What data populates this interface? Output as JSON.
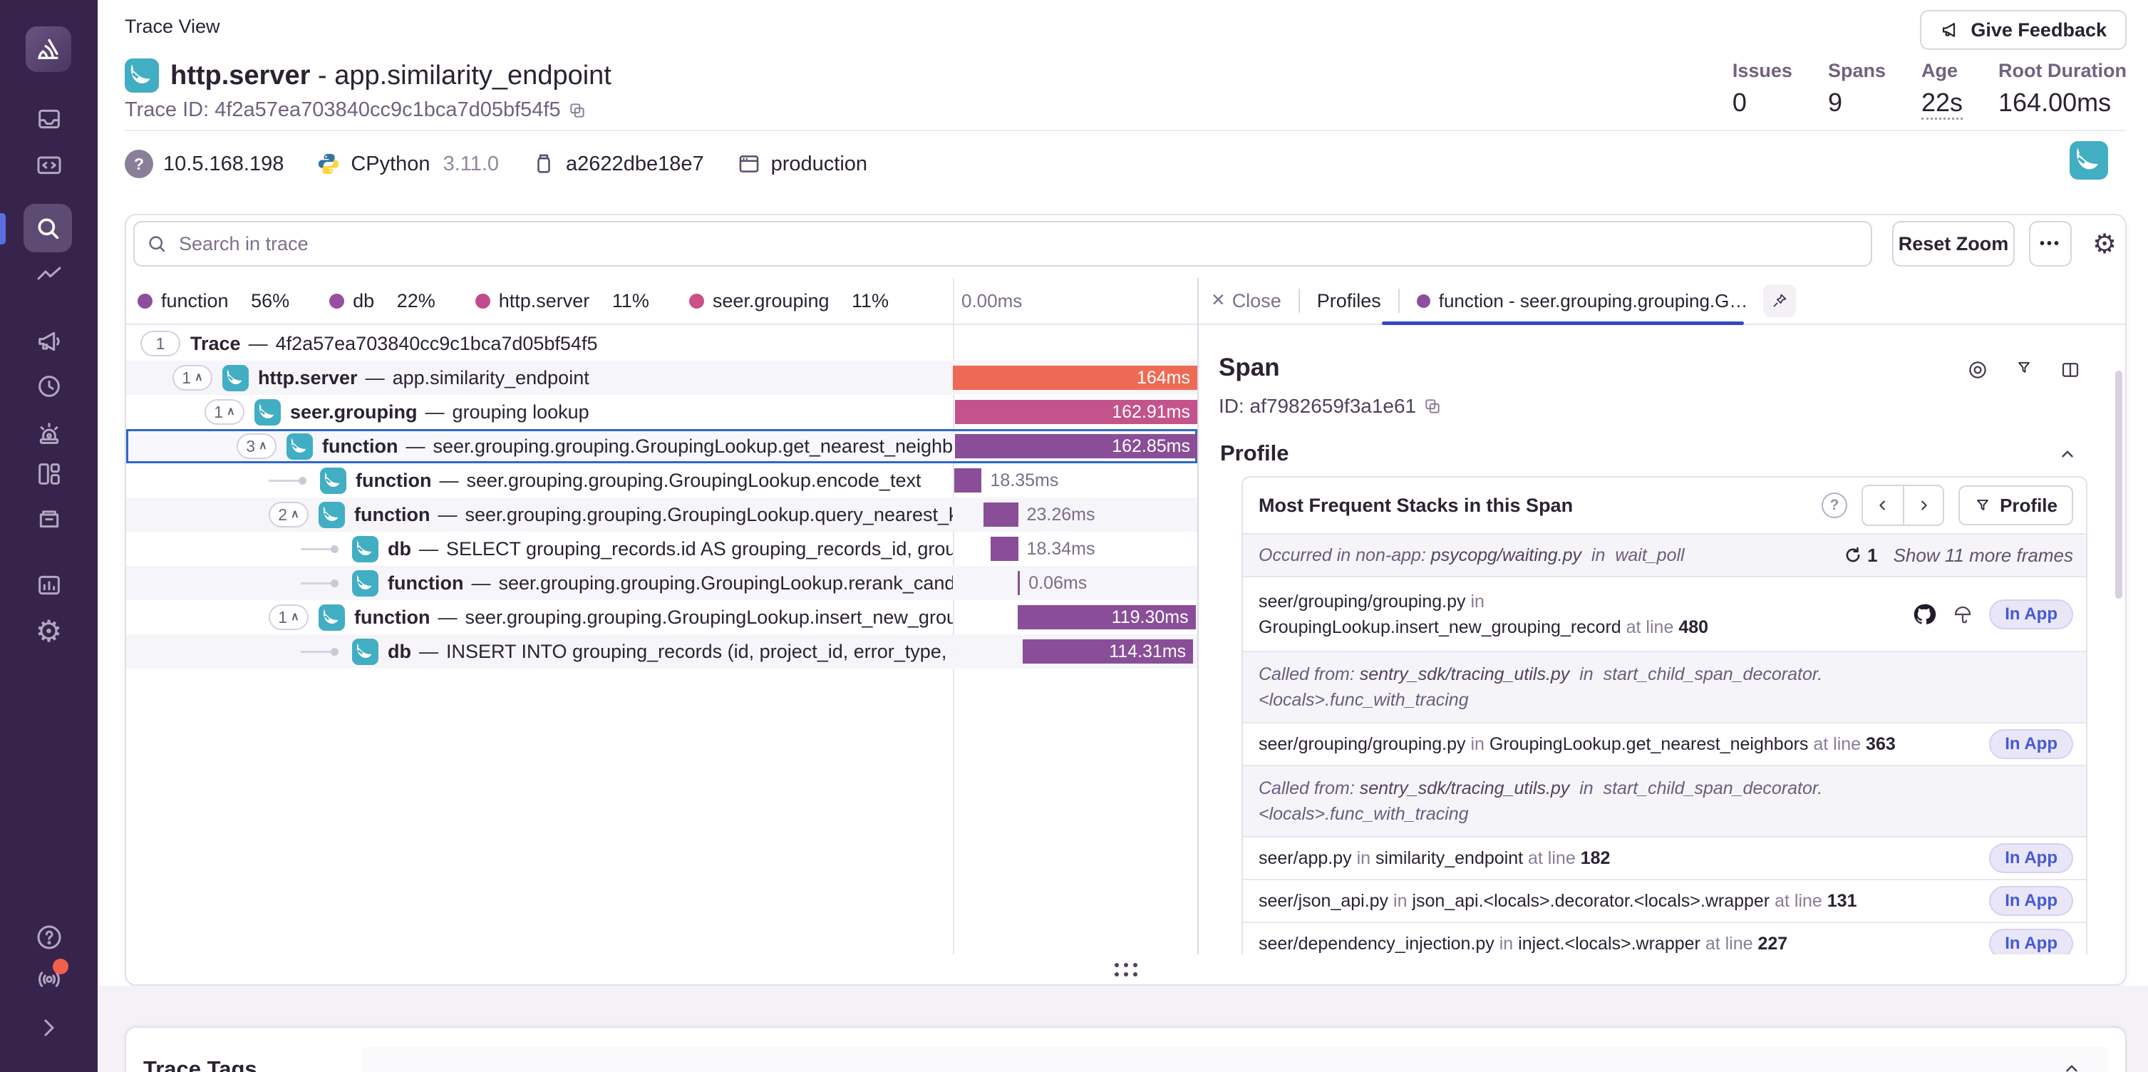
{
  "page": {
    "title": "Trace View"
  },
  "header": {
    "page_title": "Trace View",
    "feedback_button": "Give Feedback",
    "trace_title": {
      "op": "http.server",
      "separator": "-",
      "name": "app.similarity_endpoint"
    },
    "trace_id_label": "Trace ID: 4f2a57ea703840cc9c1bca7d05bf54f5",
    "stats": [
      {
        "label": "Issues",
        "value": "0"
      },
      {
        "label": "Spans",
        "value": "9"
      },
      {
        "label": "Age",
        "value": "22s"
      },
      {
        "label": "Root Duration",
        "value": "164.00ms"
      }
    ],
    "meta": [
      {
        "avatar": "?",
        "text": "10.5.168.198"
      },
      {
        "text": "CPython",
        "version": "3.11.0"
      },
      {
        "text": "a2622dbe18e7"
      },
      {
        "text": "production"
      }
    ]
  },
  "toolbar": {
    "search_placeholder": "Search in trace",
    "reset_zoom": "Reset Zoom",
    "more": "•••"
  },
  "legend": {
    "items": [
      {
        "label": "function",
        "pct": "56%",
        "color": "#8d4e9e"
      },
      {
        "label": "db",
        "pct": "22%",
        "color": "#9a4f9e"
      },
      {
        "label": "http.server",
        "pct": "11%",
        "color": "#c04c8e"
      },
      {
        "label": "seer.grouping",
        "pct": "11%",
        "color": "#cb4f88"
      }
    ]
  },
  "timeline": {
    "origin": "0.00ms",
    "total_ms": 164
  },
  "tree": {
    "sep": "—",
    "caret": "∧",
    "rows": [
      {
        "badge": "1",
        "op": "Trace",
        "desc": "4f2a57ea703840cc9c1bca7d05bf54f5",
        "bar": null
      },
      {
        "badge": "1",
        "op": "http.server",
        "desc": "app.similarity_endpoint",
        "bar": {
          "left": 0,
          "width": 100,
          "color": "#ee6a55",
          "label": "164ms",
          "inside": true
        }
      },
      {
        "badge": "1",
        "op": "seer.grouping",
        "desc": "grouping lookup",
        "bar": {
          "left": 0.8,
          "width": 99.2,
          "color": "#c4538b",
          "label": "162.91ms",
          "inside": true
        }
      },
      {
        "badge": "3",
        "op": "function",
        "desc": "seer.grouping.grouping.GroupingLookup.get_nearest_neighbors",
        "selected": true,
        "bar": {
          "left": 1.0,
          "width": 99.0,
          "color": "#8a4e98",
          "label": "162.85ms",
          "inside": true
        }
      },
      {
        "op": "function",
        "desc": "seer.grouping.grouping.GroupingLookup.encode_text",
        "bar": {
          "left": 0.6,
          "width": 11.2,
          "color": "#8a4e98",
          "label": "18.35ms",
          "inside": false
        }
      },
      {
        "badge": "2",
        "op": "function",
        "desc": "seer.grouping.grouping.GroupingLookup.query_nearest_k_neig",
        "bar": {
          "left": 12.5,
          "width": 14.2,
          "color": "#8a4e98",
          "label": "23.26ms",
          "inside": false
        }
      },
      {
        "op": "db",
        "desc": "SELECT grouping_records.id AS grouping_records_id, grouping_r",
        "bar": {
          "left": 15.5,
          "width": 11.2,
          "color": "#8a4e98",
          "label": "18.34ms",
          "inside": false
        }
      },
      {
        "op": "function",
        "desc": "seer.grouping.grouping.GroupingLookup.rerank_candidates",
        "bar": {
          "left": 26.6,
          "width": 0.2,
          "color": "#8a4e98",
          "label": "0.06ms",
          "inside": false
        }
      },
      {
        "badge": "1",
        "op": "function",
        "desc": "seer.grouping.grouping.GroupingLookup.insert_new_grouping_",
        "bar": {
          "left": 26.6,
          "width": 72.7,
          "color": "#8a4e98",
          "label": "119.30ms",
          "inside": true
        }
      },
      {
        "op": "db",
        "desc": "INSERT INTO grouping_records (id, project_id, error_type, stacktra",
        "bar": {
          "left": 28.6,
          "width": 69.7,
          "color": "#8a4e98",
          "label": "114.31ms",
          "inside": true
        }
      }
    ]
  },
  "detail": {
    "tabs": {
      "close": "Close",
      "profiles": "Profiles",
      "active": "function - seer.grouping.grouping.G…"
    },
    "span": {
      "heading": "Span",
      "id_label": "ID: af7982659f3a1e61"
    },
    "profile_section": "Profile",
    "stacks": {
      "title": "Most Frequent Stacks in this Span",
      "help": "?",
      "profile_button": "Profile",
      "occurred": {
        "prefix": "Occurred in non-app: ",
        "path": "psycopg/waiting.py",
        "in": "in",
        "func": "wait_poll",
        "count": "1",
        "more": "Show 11 more frames"
      },
      "frames": [
        {
          "type": "app",
          "path": "seer/grouping/grouping.py",
          "in": "in",
          "func": "GroupingLookup.insert_new_grouping_record",
          "at": "at line",
          "line": "480",
          "badge": "In App"
        },
        {
          "type": "sys",
          "prefix": "Called from: ",
          "path": "sentry_sdk/tracing_utils.py",
          "in": "in",
          "func": "start_child_span_decorator.<locals>.func_with_tracing"
        },
        {
          "type": "app",
          "path": "seer/grouping/grouping.py",
          "in": "in",
          "func": "GroupingLookup.get_nearest_neighbors",
          "at": "at line",
          "line": "363",
          "badge": "In App"
        },
        {
          "type": "sys",
          "prefix": "Called from: ",
          "path": "sentry_sdk/tracing_utils.py",
          "in": "in",
          "func": "start_child_span_decorator.<locals>.func_with_tracing"
        },
        {
          "type": "app",
          "path": "seer/app.py",
          "in": "in",
          "func": "similarity_endpoint",
          "at": "at line",
          "line": "182",
          "badge": "In App"
        },
        {
          "type": "app",
          "path": "seer/json_api.py",
          "in": "in",
          "func": "json_api.<locals>.decorator.<locals>.wrapper",
          "at": "at line",
          "line": "131",
          "badge": "In App"
        },
        {
          "type": "app",
          "path": "seer/dependency_injection.py",
          "in": "in",
          "func": "inject.<locals>.wrapper",
          "at": "at line",
          "line": "227",
          "badge": "In App"
        }
      ]
    }
  },
  "footer": {
    "trace_tags": "Trace Tags"
  },
  "colors": {
    "accent_blue": "#2e69c5",
    "tab_underline": "#3447c9",
    "http_bar": "#ee6a55",
    "grouping_bar": "#c4538b",
    "function_bar": "#8a4e98",
    "teal_project": "#41aec3",
    "sidebar_bg": "#37244c",
    "notif": "#f0604c"
  }
}
